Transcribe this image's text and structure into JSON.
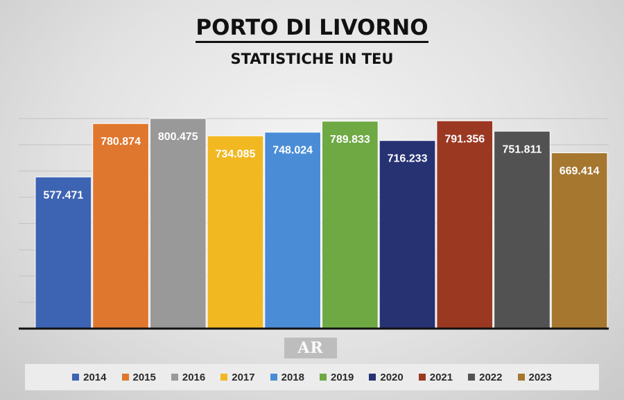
{
  "chart_data": {
    "type": "bar",
    "title": "PORTO DI LIVORNO",
    "subtitle": "STATISTICHE IN TEU",
    "categories": [
      "2014",
      "2015",
      "2016",
      "2017",
      "2018",
      "2019",
      "2020",
      "2021",
      "2022",
      "2023"
    ],
    "values": [
      577471,
      780874,
      800475,
      734085,
      748024,
      789833,
      716233,
      791356,
      751811,
      669414
    ],
    "value_labels": [
      "577.471",
      "780.874",
      "800.475",
      "734.085",
      "748.024",
      "789.833",
      "716.233",
      "791.356",
      "751.811",
      "669.414"
    ],
    "colors": [
      "#3d63b3",
      "#e0772e",
      "#999999",
      "#f2b822",
      "#4a8dd6",
      "#6ea944",
      "#263272",
      "#9b3822",
      "#525252",
      "#a5772f"
    ],
    "ylim": [
      0,
      800000
    ],
    "grid": true,
    "legend_position": "bottom",
    "logo": "AR"
  }
}
